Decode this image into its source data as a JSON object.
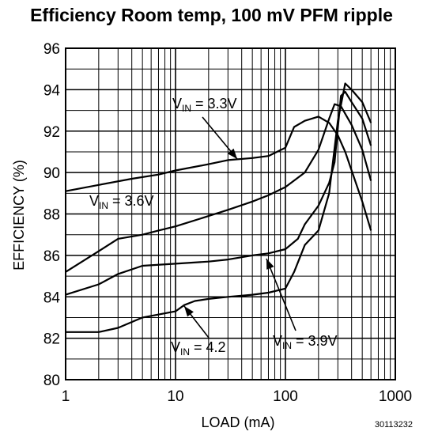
{
  "chart_data": {
    "type": "line",
    "title": "Efficiency Room temp, 100 mV PFM ripple",
    "xlabel": "LOAD (mA)",
    "ylabel": "EFFICIENCY (%)",
    "x_scale": "log",
    "xlim": [
      1,
      1000
    ],
    "ylim": [
      80,
      96
    ],
    "x_ticks": [
      "1",
      "10",
      "100",
      "1000"
    ],
    "y_ticks": [
      "80",
      "82",
      "84",
      "86",
      "88",
      "90",
      "92",
      "94",
      "96"
    ],
    "grid": true,
    "figure_id": "30113232",
    "series": [
      {
        "name": "VIN = 3.3V",
        "label_main": "V",
        "label_sub": "IN",
        "label_rest": " = 3.3V",
        "x": [
          1,
          2,
          4,
          7,
          10,
          20,
          30,
          50,
          70,
          100,
          120,
          150,
          200,
          250,
          300,
          350,
          400,
          500,
          600
        ],
        "y": [
          89.1,
          89.4,
          89.7,
          89.9,
          90.1,
          90.4,
          90.6,
          90.7,
          90.8,
          91.2,
          92.2,
          92.5,
          92.7,
          92.4,
          91.8,
          91.0,
          90.1,
          88.6,
          87.2
        ]
      },
      {
        "name": "VIN = 3.6V",
        "label_main": "V",
        "label_sub": "IN",
        "label_rest": " = 3.6V",
        "x": [
          1,
          2,
          3,
          5,
          7,
          10,
          20,
          30,
          50,
          70,
          100,
          150,
          200,
          250,
          280,
          320,
          400,
          500,
          600
        ],
        "y": [
          85.2,
          86.2,
          86.8,
          87.0,
          87.2,
          87.4,
          87.9,
          88.2,
          88.6,
          88.9,
          89.3,
          90.0,
          91.1,
          92.6,
          93.3,
          93.2,
          92.3,
          91.1,
          89.6
        ]
      },
      {
        "name": "VIN = 3.9V",
        "label_main": "V",
        "label_sub": "IN",
        "label_rest": " = 3.9V",
        "x": [
          1,
          2,
          3,
          5,
          10,
          20,
          30,
          50,
          70,
          100,
          130,
          150,
          200,
          250,
          280,
          320,
          350,
          400,
          500,
          600
        ],
        "y": [
          84.1,
          84.6,
          85.1,
          85.5,
          85.6,
          85.7,
          85.8,
          86.0,
          86.1,
          86.3,
          86.8,
          87.5,
          88.4,
          89.5,
          90.5,
          93.7,
          93.9,
          93.4,
          92.6,
          91.3
        ]
      },
      {
        "name": "VIN = 4.2",
        "label_main": "V",
        "label_sub": "IN",
        "label_rest": " = 4.2",
        "x": [
          1,
          2,
          3,
          5,
          10,
          12,
          15,
          20,
          30,
          50,
          70,
          100,
          120,
          150,
          200,
          250,
          300,
          350,
          400,
          500,
          600
        ],
        "y": [
          82.3,
          82.3,
          82.5,
          83.0,
          83.3,
          83.6,
          83.8,
          83.9,
          84.0,
          84.1,
          84.2,
          84.4,
          85.2,
          86.5,
          87.2,
          89.0,
          92.5,
          94.3,
          94.0,
          93.4,
          92.4
        ]
      }
    ]
  }
}
